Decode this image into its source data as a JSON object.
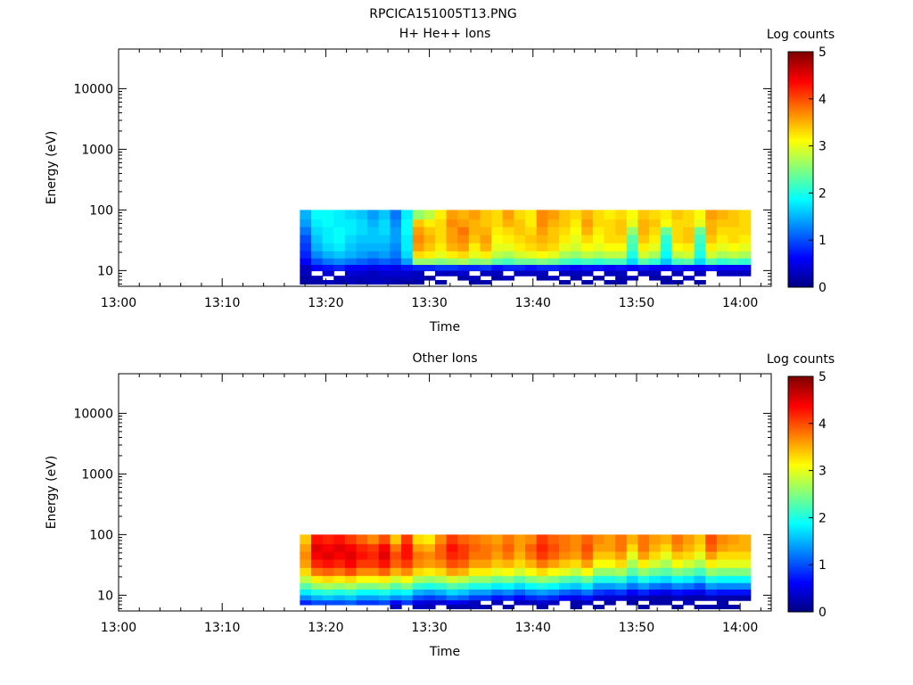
{
  "figure_title": "RPCICA151005T13.PNG",
  "chart_data": [
    {
      "type": "heatmap",
      "title": "H+ He++ Ions",
      "xlabel": "Time",
      "ylabel": "Energy (eV)",
      "x_ticks": [
        "13:00",
        "13:10",
        "13:20",
        "13:30",
        "13:40",
        "13:50",
        "14:00"
      ],
      "x_range_minutes": [
        0,
        63
      ],
      "y_scale": "log",
      "y_ticks": [
        10,
        100,
        1000,
        10000
      ],
      "y_tick_labels": [
        "10",
        "100",
        "1000",
        "10000"
      ],
      "ylim": [
        5.5,
        45000
      ],
      "colorbar": {
        "label": "Log counts",
        "range": [
          0,
          5
        ],
        "tick_labels": [
          "0",
          "1",
          "2",
          "3",
          "4",
          "5"
        ],
        "colormap": "jet"
      },
      "data_time_span": [
        "13:17:30",
        "14:01:00"
      ],
      "data_energy_span_eV": [
        6,
        100
      ],
      "energy_bands": [
        {
          "energy_eV": 80,
          "log_counts": [
            1.5,
            1.9,
            1.9,
            1.8,
            1.7,
            1.6,
            1.4,
            1.6,
            1.2,
            1.8,
            2.6,
            2.8,
            3.2,
            3.6,
            3.5,
            3.6,
            3.4,
            3.3,
            3.6,
            3.3,
            3.2,
            3.7,
            3.6,
            3.4,
            3.3,
            3.5,
            3.3,
            3.2,
            3.3,
            3.1,
            3.4,
            3.3,
            3.2,
            3.4,
            3.3,
            3.1,
            3.6,
            3.5,
            3.4,
            3.3
          ]
        },
        {
          "energy_eV": 60,
          "log_counts": [
            1.4,
            1.8,
            1.9,
            1.8,
            1.8,
            1.7,
            1.5,
            1.7,
            1.3,
            1.9,
            3.4,
            3.2,
            3.3,
            3.7,
            3.6,
            3.5,
            3.4,
            3.3,
            3.5,
            3.4,
            3.2,
            3.7,
            3.5,
            3.4,
            3.2,
            3.6,
            3.3,
            3.3,
            3.4,
            3.0,
            3.5,
            3.4,
            3.1,
            3.3,
            3.3,
            3.0,
            3.5,
            3.4,
            3.4,
            3.3
          ]
        },
        {
          "energy_eV": 45,
          "log_counts": [
            1.2,
            1.7,
            1.8,
            1.9,
            1.8,
            1.7,
            1.6,
            1.7,
            1.4,
            1.9,
            3.6,
            3.4,
            3.3,
            3.6,
            3.8,
            3.5,
            3.5,
            3.2,
            3.3,
            3.4,
            3.3,
            3.6,
            3.4,
            3.3,
            3.1,
            3.5,
            3.2,
            3.3,
            3.4,
            2.6,
            3.5,
            3.3,
            2.4,
            3.3,
            3.4,
            2.4,
            3.5,
            3.3,
            3.3,
            3.3
          ]
        },
        {
          "energy_eV": 33,
          "log_counts": [
            1.0,
            1.6,
            1.8,
            1.9,
            1.7,
            1.6,
            1.6,
            1.6,
            1.4,
            1.8,
            3.7,
            3.5,
            3.3,
            3.6,
            3.7,
            3.4,
            3.6,
            3.1,
            3.2,
            3.3,
            3.4,
            3.5,
            3.4,
            3.2,
            3.0,
            3.3,
            3.1,
            3.3,
            3.3,
            2.3,
            3.4,
            3.2,
            2.1,
            3.3,
            3.4,
            2.2,
            3.4,
            3.2,
            3.3,
            3.2
          ]
        },
        {
          "energy_eV": 24,
          "log_counts": [
            0.9,
            1.5,
            1.7,
            1.8,
            1.6,
            1.5,
            1.5,
            1.5,
            1.3,
            1.8,
            3.6,
            3.4,
            3.2,
            3.5,
            3.6,
            3.2,
            3.5,
            3.0,
            3.0,
            3.2,
            3.3,
            3.4,
            3.3,
            3.0,
            2.9,
            3.1,
            3.0,
            3.1,
            3.1,
            2.2,
            3.2,
            3.0,
            2.0,
            3.1,
            3.2,
            2.1,
            3.2,
            3.0,
            3.1,
            3.0
          ]
        },
        {
          "energy_eV": 18,
          "log_counts": [
            0.8,
            1.3,
            1.5,
            1.6,
            1.5,
            1.4,
            1.3,
            1.4,
            1.2,
            1.7,
            3.3,
            3.2,
            3.0,
            3.2,
            3.3,
            3.0,
            3.2,
            2.8,
            2.7,
            2.9,
            3.0,
            3.1,
            3.0,
            2.7,
            2.6,
            2.8,
            2.7,
            2.8,
            2.8,
            2.0,
            2.9,
            2.7,
            1.9,
            2.8,
            2.9,
            2.0,
            2.9,
            2.7,
            2.8,
            2.7
          ]
        },
        {
          "energy_eV": 14,
          "log_counts": [
            0.6,
            1.0,
            1.2,
            1.3,
            1.2,
            1.1,
            1.0,
            1.1,
            1.0,
            1.4,
            2.6,
            2.6,
            2.5,
            2.6,
            2.7,
            2.5,
            2.6,
            2.3,
            2.2,
            2.4,
            2.4,
            2.5,
            2.4,
            2.2,
            2.1,
            2.2,
            2.1,
            2.2,
            2.2,
            1.7,
            2.3,
            2.1,
            1.6,
            2.2,
            2.3,
            1.7,
            2.3,
            2.1,
            2.2,
            2.1
          ]
        },
        {
          "energy_eV": 11,
          "log_counts": [
            0.3,
            0.6,
            0.7,
            0.8,
            0.6,
            0.6,
            0.5,
            0.6,
            0.5,
            0.7,
            0.8,
            0.8,
            0.9,
            0.9,
            0.8,
            0.8,
            0.9,
            0.7,
            0.8,
            0.8,
            0.7,
            0.8,
            0.8,
            0.7,
            0.6,
            0.7,
            0.7,
            0.6,
            0.7,
            0.6,
            0.7,
            0.6,
            0.6,
            0.7,
            0.6,
            0.6,
            0.7,
            0.6,
            0.6,
            0.6
          ]
        },
        {
          "energy_eV": 9,
          "log_counts": [
            0.3,
            null,
            0.4,
            null,
            0.4,
            0.4,
            0.3,
            0.4,
            0.4,
            0.4,
            0.3,
            null,
            0.3,
            0.3,
            0.4,
            null,
            0.3,
            0.3,
            null,
            0.3,
            0.3,
            0.3,
            null,
            0.3,
            0.3,
            0.3,
            null,
            0.3,
            0.3,
            null,
            0.3,
            0.3,
            null,
            0.3,
            null,
            0.3,
            null,
            0.3,
            0.3,
            0.3
          ]
        },
        {
          "energy_eV": 7.5,
          "log_counts": [
            0.2,
            0.3,
            null,
            0.3,
            0.3,
            0.3,
            0.3,
            0.3,
            0.3,
            0.3,
            0.3,
            0.2,
            null,
            null,
            0.2,
            0.3,
            null,
            0.2,
            0.3,
            null,
            null,
            0.2,
            0.3,
            null,
            0.2,
            null,
            0.2,
            null,
            0.2,
            0.3,
            null,
            0.2,
            0.2,
            null,
            0.3,
            null,
            null,
            null,
            null,
            null
          ]
        },
        {
          "energy_eV": 6.5,
          "log_counts": [
            0.2,
            0.2,
            0.3,
            0.2,
            0.3,
            0.2,
            0.3,
            0.3,
            0.2,
            0.2,
            0.2,
            null,
            0.2,
            null,
            null,
            0.2,
            0.2,
            null,
            null,
            null,
            null,
            null,
            null,
            0.2,
            null,
            0.2,
            null,
            0.2,
            0.2,
            null,
            null,
            null,
            0.2,
            0.2,
            null,
            0.2,
            null,
            null,
            null,
            null
          ]
        }
      ]
    },
    {
      "type": "heatmap",
      "title": "Other Ions",
      "xlabel": "Time",
      "ylabel": "Energy (eV)",
      "x_ticks": [
        "13:00",
        "13:10",
        "13:20",
        "13:30",
        "13:40",
        "13:50",
        "14:00"
      ],
      "x_range_minutes": [
        0,
        63
      ],
      "y_scale": "log",
      "y_ticks": [
        10,
        100,
        1000,
        10000
      ],
      "y_tick_labels": [
        "10",
        "100",
        "1000",
        "10000"
      ],
      "ylim": [
        5.5,
        45000
      ],
      "colorbar": {
        "label": "Log counts",
        "range": [
          0,
          5
        ],
        "tick_labels": [
          "0",
          "1",
          "2",
          "3",
          "4",
          "5"
        ],
        "colormap": "jet"
      },
      "data_time_span": [
        "13:17:30",
        "14:01:00"
      ],
      "data_energy_span_eV": [
        6,
        100
      ],
      "energy_bands": [
        {
          "energy_eV": 80,
          "log_counts": [
            3.4,
            4.3,
            4.2,
            4.3,
            4.1,
            3.9,
            3.7,
            4.0,
            3.4,
            4.1,
            3.3,
            3.2,
            3.7,
            4.1,
            3.9,
            3.8,
            3.7,
            3.6,
            3.8,
            3.6,
            3.7,
            4.1,
            3.9,
            3.8,
            3.7,
            3.9,
            3.7,
            3.6,
            3.8,
            3.5,
            3.8,
            3.6,
            3.5,
            3.8,
            3.6,
            3.4,
            4.0,
            3.7,
            3.6,
            3.5
          ]
        },
        {
          "energy_eV": 60,
          "log_counts": [
            3.6,
            4.5,
            4.4,
            4.5,
            4.4,
            4.2,
            4.1,
            4.4,
            3.8,
            4.3,
            3.6,
            3.5,
            3.9,
            4.3,
            4.1,
            3.9,
            3.8,
            3.7,
            3.9,
            3.6,
            3.9,
            4.2,
            4.0,
            3.8,
            3.7,
            4.0,
            3.6,
            3.6,
            3.8,
            3.3,
            3.8,
            3.5,
            3.3,
            3.7,
            3.5,
            3.3,
            3.9,
            3.6,
            3.5,
            3.5
          ]
        },
        {
          "energy_eV": 45,
          "log_counts": [
            3.7,
            4.4,
            4.5,
            4.4,
            4.5,
            4.3,
            4.2,
            4.5,
            4.0,
            4.3,
            3.8,
            3.7,
            3.9,
            4.2,
            4.1,
            3.8,
            3.8,
            3.6,
            3.8,
            3.5,
            3.8,
            4.1,
            3.9,
            3.7,
            3.6,
            3.9,
            3.4,
            3.4,
            3.6,
            3.0,
            3.6,
            3.3,
            3.0,
            3.4,
            3.3,
            3.0,
            3.6,
            3.3,
            3.3,
            3.3
          ]
        },
        {
          "energy_eV": 33,
          "log_counts": [
            3.6,
            4.2,
            4.3,
            4.2,
            4.4,
            4.1,
            4.1,
            4.3,
            3.9,
            4.1,
            3.7,
            3.6,
            3.7,
            4.0,
            3.9,
            3.6,
            3.6,
            3.4,
            3.5,
            3.3,
            3.5,
            3.8,
            3.6,
            3.4,
            3.3,
            3.6,
            3.1,
            3.1,
            3.3,
            2.7,
            3.2,
            2.9,
            2.7,
            3.1,
            2.9,
            2.7,
            3.2,
            3.0,
            3.0,
            3.0
          ]
        },
        {
          "energy_eV": 24,
          "log_counts": [
            3.3,
            3.8,
            3.9,
            3.8,
            4.0,
            3.7,
            3.7,
            3.9,
            3.5,
            3.7,
            3.3,
            3.2,
            3.3,
            3.6,
            3.5,
            3.2,
            3.2,
            3.0,
            3.1,
            2.9,
            3.1,
            3.3,
            3.1,
            3.0,
            2.8,
            3.1,
            2.6,
            2.6,
            2.7,
            2.3,
            2.6,
            2.4,
            2.3,
            2.5,
            2.4,
            2.2,
            2.6,
            2.5,
            2.5,
            2.5
          ]
        },
        {
          "energy_eV": 18,
          "log_counts": [
            2.8,
            3.2,
            3.3,
            3.2,
            3.3,
            3.1,
            3.1,
            3.2,
            2.9,
            3.1,
            2.7,
            2.6,
            2.7,
            2.9,
            2.8,
            2.6,
            2.6,
            2.4,
            2.5,
            2.3,
            2.5,
            2.6,
            2.5,
            2.3,
            2.2,
            2.4,
            2.0,
            2.0,
            2.1,
            1.7,
            2.0,
            1.8,
            1.7,
            1.9,
            1.8,
            1.6,
            2.0,
            1.9,
            1.9,
            1.9
          ]
        },
        {
          "energy_eV": 14,
          "log_counts": [
            2.3,
            2.6,
            2.7,
            2.6,
            2.7,
            2.5,
            2.5,
            2.6,
            2.3,
            2.5,
            2.1,
            2.0,
            2.1,
            2.3,
            2.2,
            2.0,
            2.0,
            1.8,
            1.9,
            1.7,
            1.9,
            2.0,
            1.9,
            1.7,
            1.6,
            1.8,
            1.4,
            1.4,
            1.5,
            1.2,
            1.4,
            1.2,
            1.1,
            1.3,
            1.2,
            1.0,
            1.4,
            1.3,
            1.3,
            1.3
          ]
        },
        {
          "energy_eV": 11,
          "log_counts": [
            1.8,
            2.0,
            2.1,
            2.0,
            2.1,
            1.9,
            1.9,
            2.0,
            1.8,
            1.9,
            1.5,
            1.4,
            1.5,
            1.7,
            1.6,
            1.4,
            1.4,
            1.2,
            1.3,
            1.1,
            1.3,
            1.4,
            1.3,
            1.1,
            1.0,
            1.2,
            0.9,
            0.8,
            0.9,
            0.6,
            0.8,
            0.6,
            0.5,
            0.7,
            0.6,
            0.5,
            0.8,
            0.7,
            0.7,
            0.7
          ]
        },
        {
          "energy_eV": 9,
          "log_counts": [
            1.3,
            1.5,
            1.6,
            1.5,
            1.6,
            1.4,
            1.4,
            1.5,
            1.3,
            1.4,
            1.0,
            0.9,
            1.0,
            1.2,
            1.1,
            0.9,
            0.9,
            0.7,
            0.8,
            0.6,
            0.8,
            0.9,
            0.8,
            0.6,
            0.5,
            0.7,
            0.4,
            0.4,
            0.4,
            0.3,
            0.3,
            0.2,
            0.2,
            0.3,
            0.2,
            0.2,
            0.3,
            0.2,
            0.2,
            0.2
          ]
        },
        {
          "energy_eV": 7.5,
          "log_counts": [
            0.8,
            1.0,
            1.0,
            1.0,
            1.1,
            0.9,
            0.9,
            1.0,
            0.6,
            0.9,
            0.5,
            0.4,
            0.4,
            0.6,
            0.5,
            0.3,
            null,
            0.3,
            null,
            0.3,
            0.3,
            0.4,
            0.3,
            null,
            0.2,
            0.3,
            null,
            0.2,
            null,
            0.2,
            null,
            0.2,
            0.2,
            null,
            0.3,
            null,
            null,
            0.2,
            null,
            null
          ]
        },
        {
          "energy_eV": 6.5,
          "log_counts": [
            null,
            null,
            null,
            null,
            null,
            null,
            null,
            null,
            0.3,
            null,
            0.3,
            0.3,
            null,
            0.2,
            0.2,
            0.3,
            0.2,
            null,
            0.2,
            null,
            null,
            0.2,
            null,
            null,
            0.2,
            null,
            0.2,
            null,
            null,
            null,
            0.2,
            null,
            null,
            0.2,
            null,
            0.2,
            0.2,
            0.2,
            0.2,
            null
          ]
        }
      ]
    }
  ]
}
